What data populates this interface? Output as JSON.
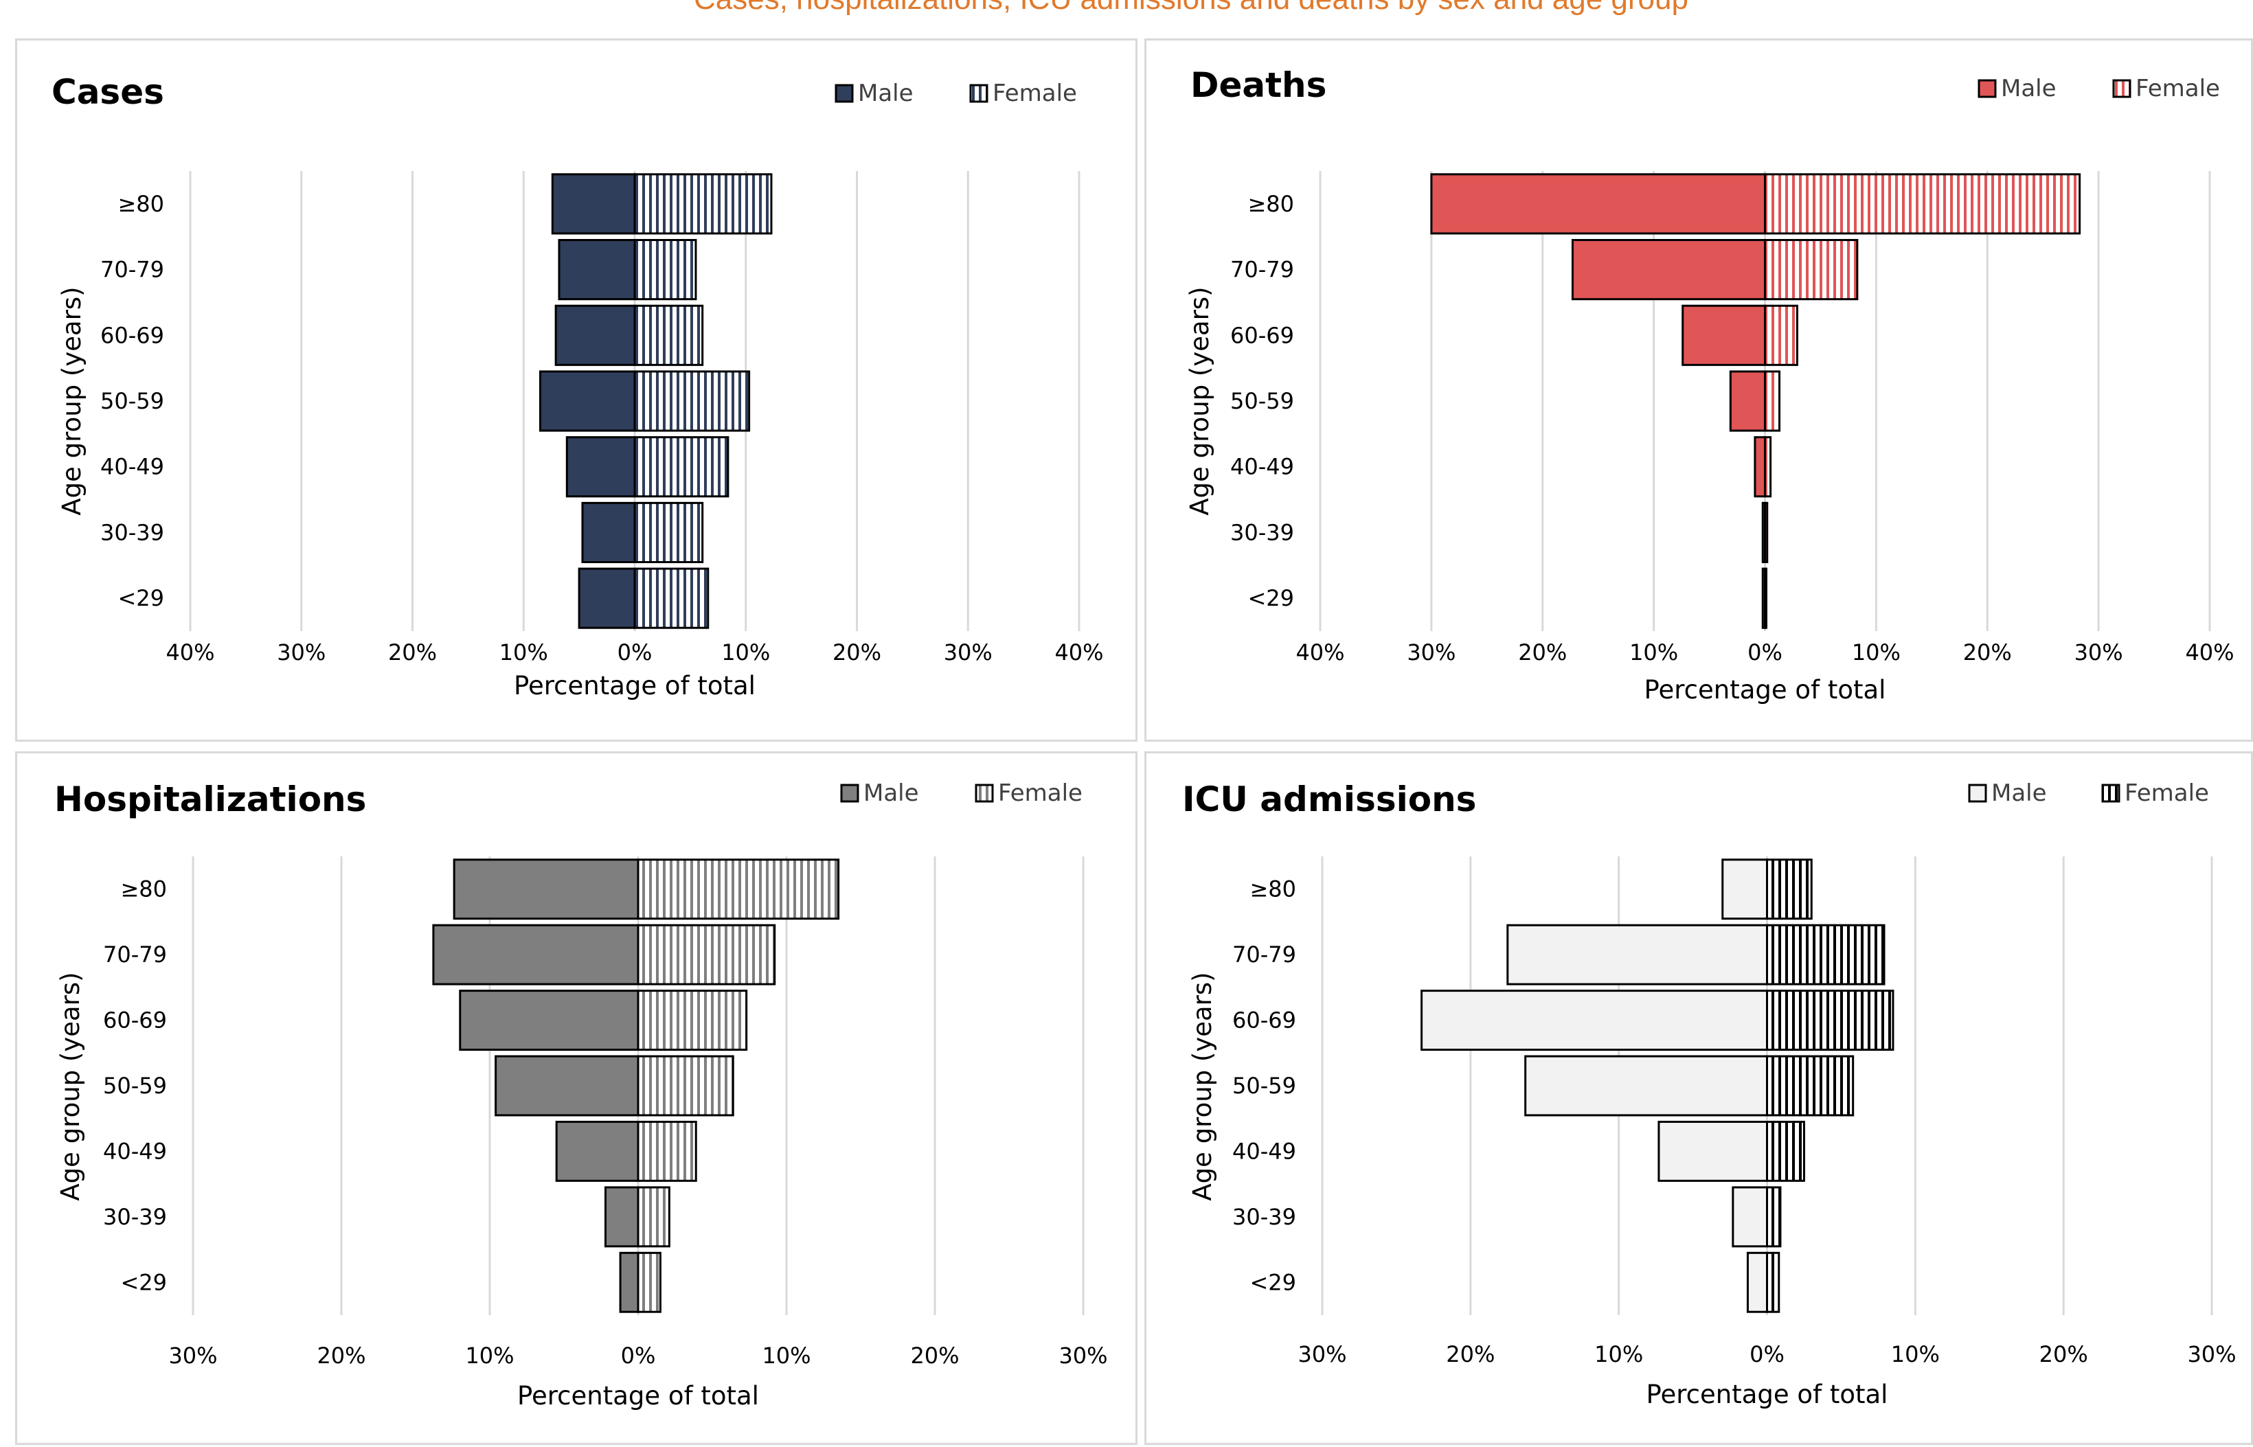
{
  "header": {
    "text": "Cases, hospitalizations, ICU admissions and deaths by sex and age group"
  },
  "colors": {
    "cases": "#2f3e5b",
    "deaths": "#e05555",
    "hospitalizations": "#7f7f7f",
    "icu": "#f2f2f2",
    "gridline": "#d9d9d9",
    "outline": "#000000"
  },
  "chart_data": [
    {
      "type": "bar",
      "orientation": "horizontal-population-pyramid",
      "title": "Cases",
      "categories": [
        "≥80",
        "70-79",
        "60-69",
        "50-59",
        "40-49",
        "30-39",
        "<29"
      ],
      "series": [
        {
          "name": "Male",
          "values": [
            7.4,
            6.8,
            7.1,
            8.5,
            6.1,
            4.7,
            5.0
          ]
        },
        {
          "name": "Female",
          "values": [
            12.3,
            5.5,
            6.1,
            10.3,
            8.4,
            6.1,
            6.6
          ]
        }
      ],
      "xlim": [
        -40,
        40
      ],
      "ticks": [
        -40,
        -30,
        -20,
        -10,
        0,
        10,
        20,
        30,
        40
      ],
      "tick_labels": [
        "40%",
        "30%",
        "20%",
        "10%",
        "0%",
        "10%",
        "20%",
        "30%",
        "40%"
      ],
      "xlabel": "Percentage of total",
      "ylabel": "Age group (years)",
      "legend": {
        "placement": "top-right",
        "entries": [
          "Male",
          "Female"
        ]
      },
      "fill_male": "#2f3e5b",
      "female_stripe": "#2f3e5b",
      "grid": true
    },
    {
      "type": "bar",
      "orientation": "horizontal-population-pyramid",
      "title": "Deaths",
      "categories": [
        "≥80",
        "70-79",
        "60-69",
        "50-59",
        "40-49",
        "30-39",
        "<29"
      ],
      "series": [
        {
          "name": "Male",
          "values": [
            30.0,
            17.3,
            7.4,
            3.1,
            0.9,
            0.2,
            0.2
          ]
        },
        {
          "name": "Female",
          "values": [
            28.3,
            8.3,
            2.9,
            1.3,
            0.5,
            0.2,
            0.1
          ]
        }
      ],
      "xlim": [
        -40,
        40
      ],
      "ticks": [
        -40,
        -30,
        -20,
        -10,
        0,
        10,
        20,
        30,
        40
      ],
      "tick_labels": [
        "40%",
        "30%",
        "20%",
        "10%",
        "0%",
        "10%",
        "20%",
        "30%",
        "40%"
      ],
      "xlabel": "Percentage of total",
      "ylabel": "Age group (years)",
      "legend": {
        "placement": "top-right",
        "entries": [
          "Male",
          "Female"
        ]
      },
      "fill_male": "#e05555",
      "female_stripe": "#e05555",
      "grid": true
    },
    {
      "type": "bar",
      "orientation": "horizontal-population-pyramid",
      "title": "Hospitalizations",
      "categories": [
        "≥80",
        "70-79",
        "60-69",
        "50-59",
        "40-49",
        "30-39",
        "<29"
      ],
      "series": [
        {
          "name": "Male",
          "values": [
            12.4,
            13.8,
            12.0,
            9.6,
            5.5,
            2.2,
            1.2
          ]
        },
        {
          "name": "Female",
          "values": [
            13.5,
            9.2,
            7.3,
            6.4,
            3.9,
            2.1,
            1.5
          ]
        }
      ],
      "xlim": [
        -30,
        30
      ],
      "ticks": [
        -30,
        -20,
        -10,
        0,
        10,
        20,
        30
      ],
      "tick_labels": [
        "30%",
        "20%",
        "10%",
        "0%",
        "10%",
        "20%",
        "30%"
      ],
      "xlabel": "Percentage of total",
      "ylabel": "Age group (years)",
      "legend": {
        "placement": "top-right",
        "entries": [
          "Male",
          "Female"
        ]
      },
      "fill_male": "#7f7f7f",
      "female_stripe": "#7f7f7f",
      "grid": true
    },
    {
      "type": "bar",
      "orientation": "horizontal-population-pyramid",
      "title": "ICU admissions",
      "categories": [
        "≥80",
        "70-79",
        "60-69",
        "50-59",
        "40-49",
        "30-39",
        "<29"
      ],
      "series": [
        {
          "name": "Male",
          "values": [
            3.0,
            17.5,
            23.3,
            16.3,
            7.3,
            2.3,
            1.3
          ]
        },
        {
          "name": "Female",
          "values": [
            3.0,
            7.9,
            8.5,
            5.8,
            2.5,
            0.9,
            0.8
          ]
        }
      ],
      "xlim": [
        -30,
        30
      ],
      "ticks": [
        -30,
        -20,
        -10,
        0,
        10,
        20,
        30
      ],
      "tick_labels": [
        "30%",
        "20%",
        "10%",
        "0%",
        "10%",
        "20%",
        "30%"
      ],
      "xlabel": "Percentage of total",
      "ylabel": "Age group (years)",
      "legend": {
        "placement": "top-right",
        "entries": [
          "Male",
          "Female"
        ]
      },
      "fill_male": "#f2f2f2",
      "female_stripe": "#000000",
      "grid": true
    }
  ]
}
